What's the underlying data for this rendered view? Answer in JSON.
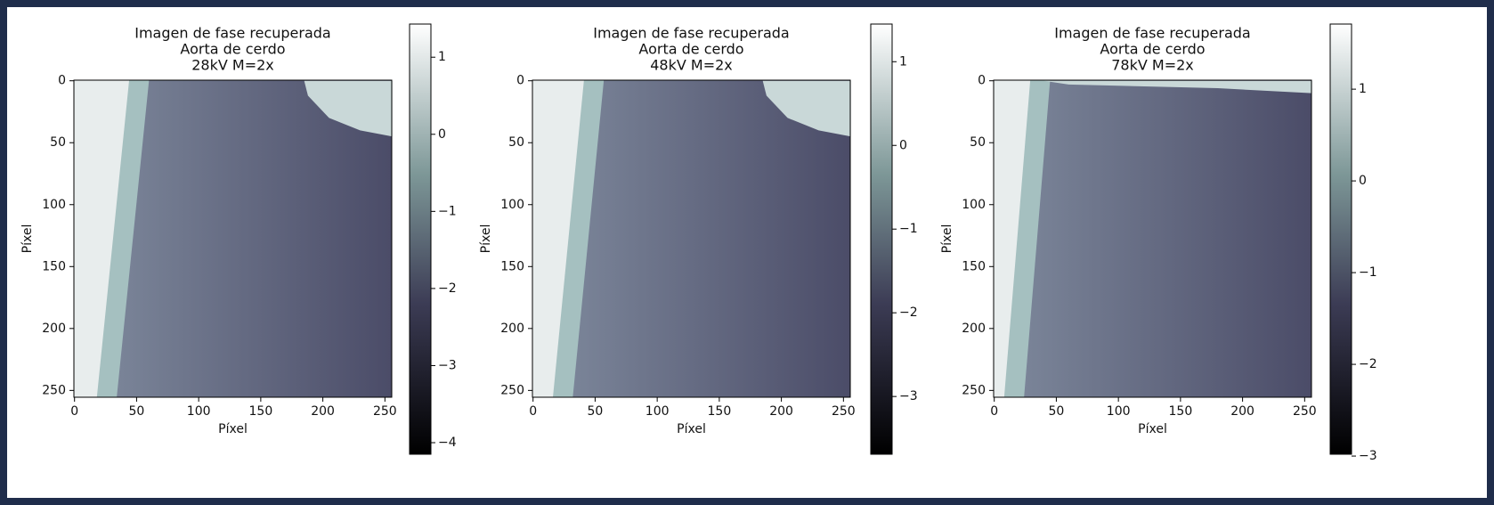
{
  "chart_data": [
    {
      "type": "image",
      "title": [
        "Imagen de fase recuperada",
        "Aorta de cerdo",
        "28kV M=2x"
      ],
      "xlabel": "Píxel",
      "ylabel": "Píxel",
      "xlim": [
        -0.5,
        255.5
      ],
      "ylim": [
        255.5,
        -0.5
      ],
      "xticks": [
        0,
        50,
        100,
        150,
        200,
        250
      ],
      "yticks": [
        0,
        50,
        100,
        150,
        200,
        250
      ],
      "colorbar": {
        "lim": [
          -4.15,
          1.43
        ],
        "ticks": [
          1,
          0,
          {
            "value": -1,
            "label": "−1"
          },
          {
            "value": -2,
            "label": "−2"
          },
          {
            "value": -3,
            "label": "−3"
          },
          {
            "value": -4,
            "label": "−4"
          }
        ]
      }
    },
    {
      "type": "image",
      "title": [
        "Imagen de fase recuperada",
        "Aorta de cerdo",
        "48kV M=2x"
      ],
      "xlabel": "Píxel",
      "ylabel": "Píxel",
      "xlim": [
        -0.5,
        255.5
      ],
      "ylim": [
        255.5,
        -0.5
      ],
      "xticks": [
        0,
        50,
        100,
        150,
        200,
        250
      ],
      "yticks": [
        0,
        50,
        100,
        150,
        200,
        250
      ],
      "colorbar": {
        "lim": [
          -3.69,
          1.45
        ],
        "ticks": [
          1,
          0,
          {
            "value": -1,
            "label": "−1"
          },
          {
            "value": -2,
            "label": "−2"
          },
          {
            "value": -3,
            "label": "−3"
          }
        ]
      }
    },
    {
      "type": "image",
      "title": [
        "Imagen de fase recuperada",
        "Aorta de cerdo",
        "78kV M=2x"
      ],
      "xlabel": "Píxel",
      "ylabel": "Píxel",
      "xlim": [
        -0.5,
        255.5
      ],
      "ylim": [
        255.5,
        -0.5
      ],
      "xticks": [
        0,
        50,
        100,
        150,
        200,
        250
      ],
      "yticks": [
        0,
        50,
        100,
        150,
        200,
        250
      ],
      "colorbar": {
        "lim": [
          -2.98,
          1.71
        ],
        "ticks": [
          1,
          0,
          {
            "value": -1,
            "label": "−1"
          },
          {
            "value": -2,
            "label": "−2"
          },
          {
            "value": -3,
            "label": "−3"
          }
        ]
      }
    }
  ]
}
